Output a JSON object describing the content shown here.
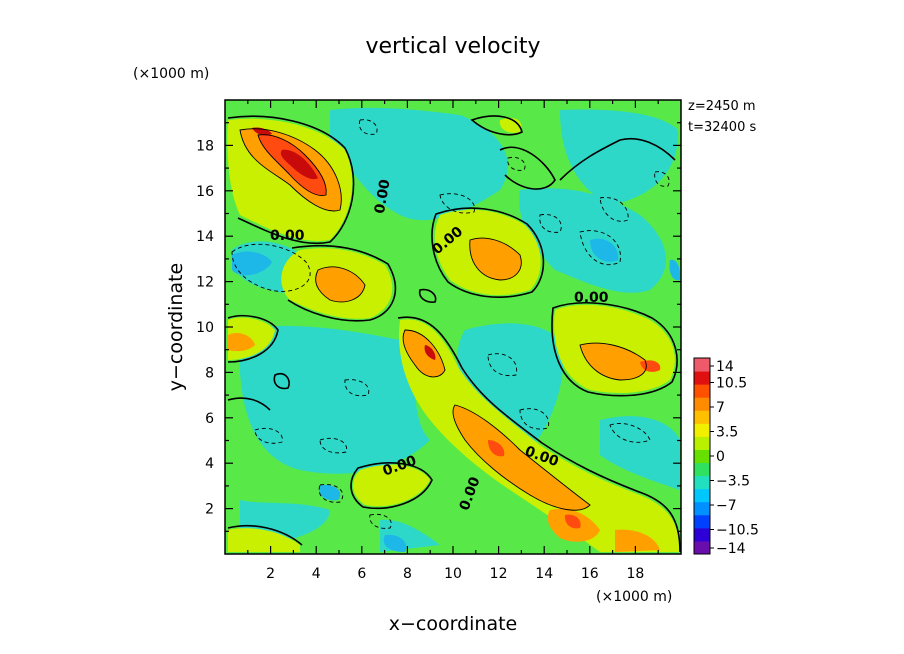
{
  "chart_data": {
    "type": "heatmap",
    "title": "vertical velocity",
    "xlabel": "x−coordinate",
    "ylabel": "y−coordinate",
    "x_unit": "(×1000 m)",
    "y_unit": "(×1000 m)",
    "xlim": [
      0,
      20
    ],
    "ylim": [
      0,
      20
    ],
    "x_ticks": [
      "2",
      "4",
      "6",
      "8",
      "10",
      "12",
      "14",
      "16",
      "18"
    ],
    "y_ticks": [
      "2",
      "4",
      "6",
      "8",
      "10",
      "12",
      "14",
      "16",
      "18"
    ],
    "info": [
      "z=2450 m",
      "t=32400 s"
    ],
    "contour_labels": [
      "0.00",
      "0.00",
      "0.00",
      "0.00",
      "0.00",
      "0.00",
      "0.00"
    ],
    "colorbar": {
      "range": [
        -14,
        14
      ],
      "tick_labels": [
        "14",
        "10.5",
        "7",
        "3.5",
        "0",
        "−3.5",
        "−7",
        "−10.5",
        "−14"
      ],
      "colors": [
        "#6a0dad",
        "#2e00d8",
        "#0040ff",
        "#0090ff",
        "#00c8ff",
        "#20e0c0",
        "#30e060",
        "#66e000",
        "#b8f000",
        "#f0f000",
        "#ffc000",
        "#ff8c00",
        "#ff5000",
        "#e01010",
        "#ee5a6a"
      ]
    },
    "grid": false
  }
}
